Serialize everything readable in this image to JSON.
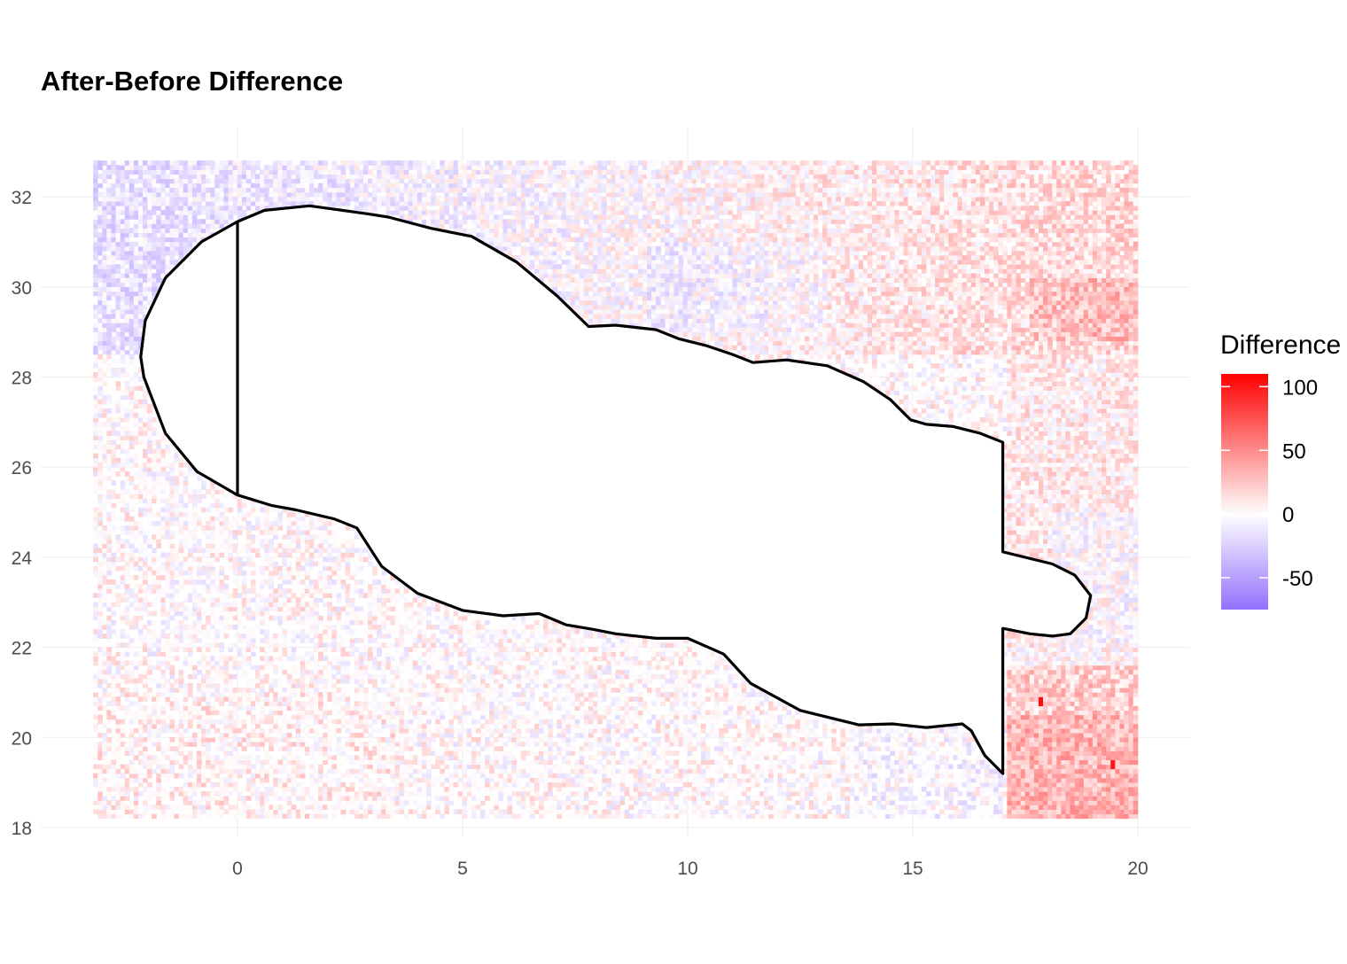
{
  "chart_data": {
    "type": "heatmap",
    "title": "After-Before Difference",
    "xlabel": "",
    "ylabel": "",
    "xlim": [
      -3.2,
      20
    ],
    "ylim": [
      18.2,
      32.8
    ],
    "x_ticks": [
      "0",
      "5",
      "10",
      "15",
      "20"
    ],
    "x_tick_values": [
      0,
      5,
      10,
      15,
      20
    ],
    "y_ticks": [
      "18",
      "20",
      "22",
      "24",
      "26",
      "28",
      "30",
      "32"
    ],
    "y_tick_values": [
      18,
      20,
      22,
      24,
      26,
      28,
      30,
      32
    ],
    "grid": true,
    "legend": {
      "title": "Difference",
      "position": "right",
      "ticks": [
        "100",
        "50",
        "0",
        "-50"
      ],
      "tick_values": [
        100,
        50,
        0,
        -50
      ],
      "range": [
        -75,
        110
      ],
      "colors": {
        "high": "#ff0000",
        "mid": "#ffffff",
        "low": "#9370ff"
      }
    },
    "regions": [
      {
        "name": "upper band",
        "x": [
          -3.2,
          20
        ],
        "y": [
          28.5,
          32.8
        ],
        "mean_left": -15,
        "mean_right": 18
      },
      {
        "name": "right band",
        "x": [
          17,
          20
        ],
        "y": [
          22,
          28.5
        ],
        "mean": 8
      },
      {
        "name": "lower right patch",
        "x": [
          17,
          20
        ],
        "y": [
          18.2,
          21.5
        ],
        "mean": 30
      },
      {
        "name": "lower left",
        "x": [
          -3.2,
          17
        ],
        "y": [
          18.2,
          25
        ],
        "mean": 4
      }
    ],
    "hotspots": [
      {
        "x": 17.8,
        "y": 20.75,
        "value": 105
      },
      {
        "x": 19.4,
        "y": 19.35,
        "value": 100
      }
    ],
    "outline": {
      "color": "#000000",
      "points": [
        [
          0,
          31.45
        ],
        [
          0.6,
          31.7
        ],
        [
          1.6,
          31.8
        ],
        [
          2.9,
          31.62
        ],
        [
          3.35,
          31.55
        ],
        [
          4.3,
          31.3
        ],
        [
          5.2,
          31.12
        ],
        [
          6.2,
          30.55
        ],
        [
          7.1,
          29.8
        ],
        [
          7.8,
          29.12
        ],
        [
          8.4,
          29.15
        ],
        [
          9.3,
          29.05
        ],
        [
          9.8,
          28.85
        ],
        [
          10.4,
          28.7
        ],
        [
          11.0,
          28.5
        ],
        [
          11.45,
          28.32
        ],
        [
          12.2,
          28.38
        ],
        [
          13.1,
          28.25
        ],
        [
          13.9,
          27.9
        ],
        [
          14.5,
          27.5
        ],
        [
          14.95,
          27.05
        ],
        [
          15.3,
          26.95
        ],
        [
          15.9,
          26.9
        ],
        [
          16.5,
          26.75
        ],
        [
          17.0,
          26.55
        ],
        [
          17.0,
          24.12
        ],
        [
          18.1,
          23.85
        ],
        [
          18.6,
          23.6
        ],
        [
          18.95,
          23.15
        ],
        [
          18.85,
          22.65
        ],
        [
          18.5,
          22.3
        ],
        [
          18.1,
          22.25
        ],
        [
          17.6,
          22.3
        ],
        [
          17.0,
          22.42
        ],
        [
          17.0,
          19.2
        ],
        [
          16.6,
          19.6
        ],
        [
          16.3,
          20.15
        ],
        [
          16.1,
          20.3
        ],
        [
          15.3,
          20.22
        ],
        [
          14.55,
          20.3
        ],
        [
          13.8,
          20.28
        ],
        [
          12.5,
          20.6
        ],
        [
          11.4,
          21.2
        ],
        [
          10.8,
          21.85
        ],
        [
          10.0,
          22.2
        ],
        [
          9.3,
          22.2
        ],
        [
          8.4,
          22.3
        ],
        [
          7.9,
          22.4
        ],
        [
          7.3,
          22.5
        ],
        [
          6.7,
          22.75
        ],
        [
          5.9,
          22.7
        ],
        [
          5.0,
          22.82
        ],
        [
          4.0,
          23.2
        ],
        [
          3.2,
          23.8
        ],
        [
          2.65,
          24.65
        ],
        [
          2.15,
          24.85
        ],
        [
          1.3,
          25.05
        ],
        [
          0.75,
          25.15
        ],
        [
          0,
          25.38
        ],
        [
          -0.9,
          25.9
        ],
        [
          -1.6,
          26.75
        ],
        [
          -2.08,
          28.0
        ],
        [
          -2.15,
          28.45
        ],
        [
          -2.05,
          29.25
        ],
        [
          -1.6,
          30.2
        ],
        [
          -0.8,
          31.0
        ],
        [
          0,
          31.45
        ]
      ],
      "divider": [
        [
          0,
          31.45
        ],
        [
          0,
          25.38
        ]
      ]
    }
  }
}
